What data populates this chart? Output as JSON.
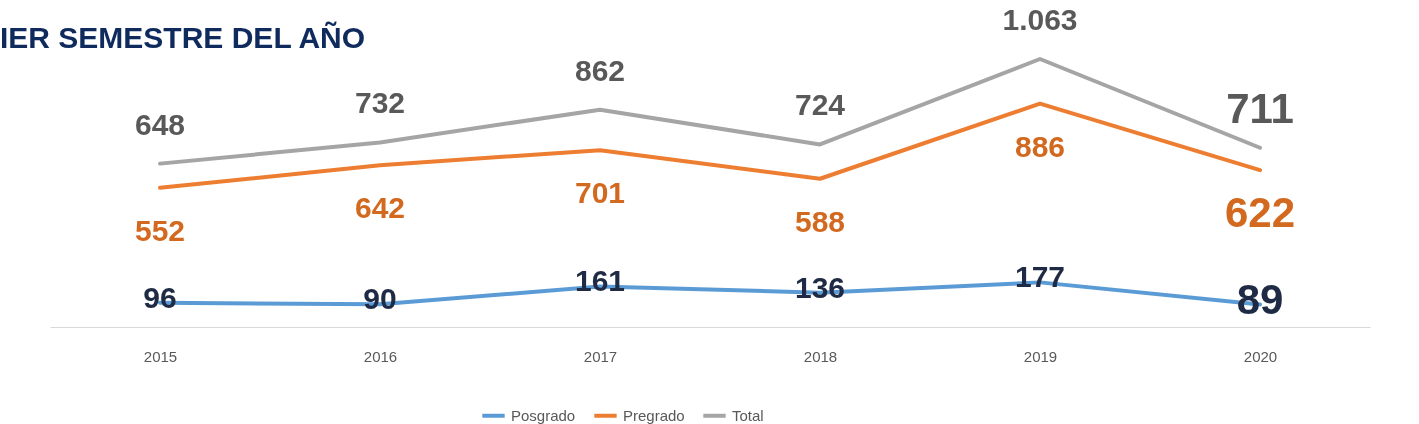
{
  "chart_data": {
    "type": "line",
    "title": "IER SEMESTRE DEL AÑO",
    "categories": [
      "2015",
      "2016",
      "2017",
      "2018",
      "2019",
      "2020"
    ],
    "series": [
      {
        "name": "Posgrado",
        "color": "#5b9bd5",
        "values": [
          96,
          90,
          161,
          136,
          177,
          89
        ]
      },
      {
        "name": "Pregrado",
        "color": "#ed7d31",
        "values": [
          552,
          642,
          701,
          588,
          886,
          622
        ]
      },
      {
        "name": "Total",
        "color": "#a5a5a5",
        "values": [
          648,
          732,
          862,
          724,
          1063,
          711
        ],
        "value_labels": [
          "648",
          "732",
          "862",
          "724",
          "1.063",
          "711"
        ]
      }
    ],
    "data_labels": true,
    "legend": "bottom",
    "grid": false
  }
}
